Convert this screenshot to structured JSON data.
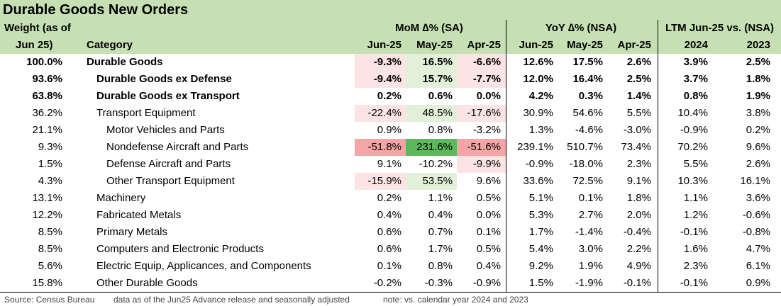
{
  "title": "Durable Goods New Orders",
  "header": {
    "weight_line1": "Weight (as of",
    "weight_line2": "Jun 25)",
    "category": "Category",
    "group_mom": "MoM ∆% (SA)",
    "group_yoy": "YoY ∆% (NSA)",
    "group_ltm": "LTM Jun-25 vs. (NSA)",
    "cols": [
      "Jun-25",
      "May-25",
      "Apr-25",
      "Jun-25",
      "May-25",
      "Apr-25",
      "2024",
      "2023"
    ]
  },
  "colors": {
    "header_bg": "#c6e0b4",
    "light_red": "#fce4e4",
    "red": "#f4a6a6",
    "light_green": "#e2f0d9",
    "green": "#5cb85c"
  },
  "chart_data": {
    "type": "table",
    "rows": [
      {
        "weight": "100.0%",
        "category": "Durable Goods",
        "indent": 0,
        "bold": true,
        "values": [
          "-9.3%",
          "16.5%",
          "-6.6%",
          "12.6%",
          "17.5%",
          "2.6%",
          "3.9%",
          "2.5%"
        ],
        "shading": [
          "light_red",
          "light_green",
          "light_red",
          "",
          "",
          "",
          "",
          ""
        ]
      },
      {
        "weight": "93.6%",
        "category": "Durable Goods ex Defense",
        "indent": 1,
        "bold": true,
        "values": [
          "-9.4%",
          "15.7%",
          "-7.7%",
          "12.0%",
          "16.4%",
          "2.5%",
          "3.7%",
          "1.8%"
        ],
        "shading": [
          "light_red",
          "light_green",
          "light_red",
          "",
          "",
          "",
          "",
          ""
        ]
      },
      {
        "weight": "63.8%",
        "category": "Durable Goods ex Transport",
        "indent": 1,
        "bold": true,
        "values": [
          "0.2%",
          "0.6%",
          "0.0%",
          "4.2%",
          "0.3%",
          "1.4%",
          "0.8%",
          "1.9%"
        ],
        "shading": [
          "",
          "",
          "",
          "",
          "",
          "",
          "",
          ""
        ]
      },
      {
        "weight": "36.2%",
        "category": "Transport Equipment",
        "indent": 1,
        "bold": false,
        "values": [
          "-22.4%",
          "48.5%",
          "-17.6%",
          "30.9%",
          "54.6%",
          "5.5%",
          "10.4%",
          "3.8%"
        ],
        "shading": [
          "light_red",
          "light_green",
          "light_red",
          "",
          "",
          "",
          "",
          ""
        ]
      },
      {
        "weight": "21.1%",
        "category": "Motor Vehicles and Parts",
        "indent": 2,
        "bold": false,
        "values": [
          "0.9%",
          "0.8%",
          "-3.2%",
          "1.3%",
          "-4.6%",
          "-3.0%",
          "-0.9%",
          "0.2%"
        ],
        "shading": [
          "",
          "",
          "",
          "",
          "",
          "",
          "",
          ""
        ]
      },
      {
        "weight": "9.3%",
        "category": "Nondefense Aircraft and Parts",
        "indent": 2,
        "bold": false,
        "values": [
          "-51.8%",
          "231.6%",
          "-51.6%",
          "239.1%",
          "510.7%",
          "73.4%",
          "70.2%",
          "9.6%"
        ],
        "shading": [
          "red",
          "green",
          "red",
          "",
          "",
          "",
          "",
          ""
        ]
      },
      {
        "weight": "1.5%",
        "category": "Defense Aircraft and Parts",
        "indent": 2,
        "bold": false,
        "values": [
          "9.1%",
          "-10.2%",
          "-9.9%",
          "-0.9%",
          "-18.0%",
          "2.3%",
          "5.5%",
          "2.6%"
        ],
        "shading": [
          "",
          "",
          "light_red",
          "",
          "",
          "",
          "",
          ""
        ]
      },
      {
        "weight": "4.3%",
        "category": "Other Transport Equipment",
        "indent": 2,
        "bold": false,
        "values": [
          "-15.9%",
          "53.5%",
          "9.6%",
          "33.6%",
          "72.5%",
          "9.1%",
          "10.3%",
          "16.1%"
        ],
        "shading": [
          "light_red",
          "light_green",
          "",
          "",
          "",
          "",
          "",
          ""
        ]
      },
      {
        "weight": "13.1%",
        "category": "Machinery",
        "indent": 1,
        "bold": false,
        "values": [
          "0.2%",
          "1.1%",
          "0.5%",
          "5.1%",
          "0.1%",
          "1.8%",
          "1.1%",
          "3.6%"
        ],
        "shading": [
          "",
          "",
          "",
          "",
          "",
          "",
          "",
          ""
        ]
      },
      {
        "weight": "12.2%",
        "category": "Fabricated Metals",
        "indent": 1,
        "bold": false,
        "values": [
          "0.4%",
          "0.4%",
          "0.0%",
          "5.3%",
          "2.7%",
          "2.0%",
          "1.2%",
          "-0.6%"
        ],
        "shading": [
          "",
          "",
          "",
          "",
          "",
          "",
          "",
          ""
        ]
      },
      {
        "weight": "8.5%",
        "category": "Primary Metals",
        "indent": 1,
        "bold": false,
        "values": [
          "0.6%",
          "0.7%",
          "0.1%",
          "1.7%",
          "-1.4%",
          "-0.4%",
          "-0.1%",
          "-0.8%"
        ],
        "shading": [
          "",
          "",
          "",
          "",
          "",
          "",
          "",
          ""
        ]
      },
      {
        "weight": "8.5%",
        "category": "Computers and Electronic Products",
        "indent": 1,
        "bold": false,
        "values": [
          "0.6%",
          "1.7%",
          "0.5%",
          "5.4%",
          "3.0%",
          "2.2%",
          "1.6%",
          "4.7%"
        ],
        "shading": [
          "",
          "",
          "",
          "",
          "",
          "",
          "",
          ""
        ]
      },
      {
        "weight": "5.6%",
        "category": "Electric Equip, Applicances, and Components",
        "indent": 1,
        "bold": false,
        "values": [
          "0.1%",
          "0.8%",
          "0.4%",
          "9.2%",
          "1.9%",
          "4.9%",
          "2.3%",
          "6.1%"
        ],
        "shading": [
          "",
          "",
          "",
          "",
          "",
          "",
          "",
          ""
        ]
      },
      {
        "weight": "15.8%",
        "category": "Other Durable Goods",
        "indent": 1,
        "bold": false,
        "values": [
          "-0.2%",
          "-0.3%",
          "-0.9%",
          "1.5%",
          "-1.9%",
          "-0.1%",
          "-0.1%",
          "0.9%"
        ],
        "shading": [
          "",
          "",
          "",
          "",
          "",
          "",
          "",
          ""
        ]
      }
    ]
  },
  "footer": {
    "source": "Source: Census Bureau",
    "note1": "data as of the Jun25 Advance release and seasonally adjusted",
    "note2": "note: vs. calendar year 2024 and 2023"
  }
}
